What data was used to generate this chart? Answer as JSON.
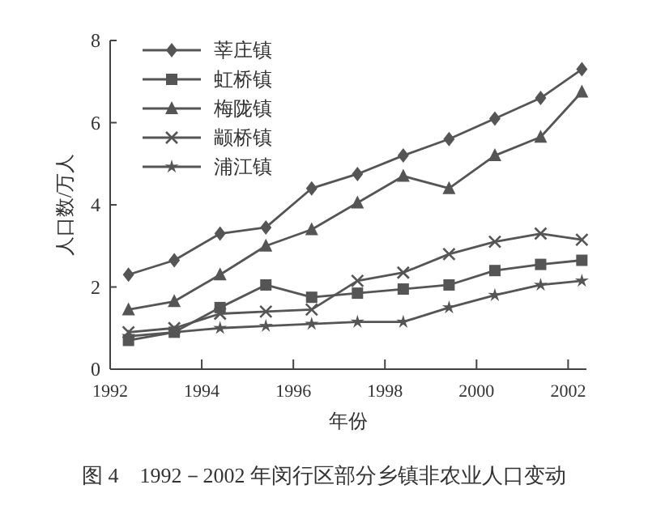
{
  "chart_data": {
    "type": "line",
    "xlabel": "年份",
    "ylabel": "人口数/万人",
    "annotations": [
      "图 4　1992－2002 年闵行区部分乡镇非农业人口变动"
    ],
    "x": [
      1992.4,
      1993.4,
      1994.4,
      1995.4,
      1996.4,
      1997.4,
      1998.4,
      1999.4,
      2000.4,
      2001.4,
      2002.3
    ],
    "xlim": [
      1992,
      2002.4
    ],
    "xticks": [
      1992,
      1994,
      1996,
      1998,
      2000,
      2002
    ],
    "ylim": [
      0,
      8
    ],
    "yticks": [
      0,
      2,
      4,
      6,
      8
    ],
    "grid": false,
    "legend": "top left",
    "line_style": "solid",
    "series": [
      {
        "name": "莘庄镇",
        "color": "#555555",
        "marker": "diamond",
        "values": [
          2.3,
          2.65,
          3.3,
          3.45,
          4.4,
          4.75,
          5.2,
          5.6,
          6.1,
          6.6,
          7.3
        ]
      },
      {
        "name": "虹桥镇",
        "color": "#555555",
        "marker": "square",
        "values": [
          0.7,
          0.9,
          1.5,
          2.05,
          1.75,
          1.85,
          1.95,
          2.05,
          2.4,
          2.55,
          2.65
        ]
      },
      {
        "name": "梅陇镇",
        "color": "#555555",
        "marker": "triangle",
        "values": [
          1.45,
          1.65,
          2.3,
          3.0,
          3.4,
          4.05,
          4.7,
          4.4,
          5.2,
          5.65,
          6.75
        ]
      },
      {
        "name": "颛桥镇",
        "color": "#555555",
        "marker": "cross",
        "values": [
          0.9,
          1.0,
          1.35,
          1.4,
          1.45,
          2.15,
          2.35,
          2.8,
          3.1,
          3.3,
          3.15
        ]
      },
      {
        "name": "浦江镇",
        "color": "#555555",
        "marker": "star",
        "values": [
          0.8,
          0.9,
          1.0,
          1.05,
          1.1,
          1.15,
          1.15,
          1.5,
          1.8,
          2.05,
          2.15
        ]
      }
    ]
  }
}
